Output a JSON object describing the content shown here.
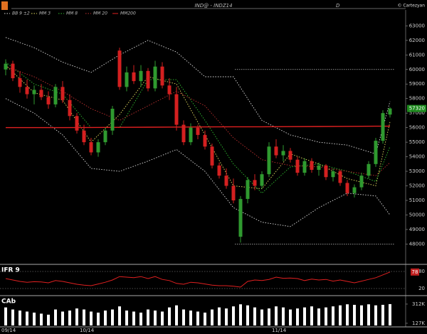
{
  "chart_data": [
    {
      "type": "candlestick",
      "title": "IND@ - INDZ14",
      "subtitle": "D",
      "credit": "© Cartezyan",
      "up_color": "#2f9a2f",
      "down_color": "#d42020",
      "ylim": [
        46700,
        63800
      ],
      "yticks": [
        48000,
        49000,
        50000,
        51000,
        52000,
        53000,
        54000,
        55000,
        56000,
        57000,
        58000,
        59000,
        60000,
        61000,
        62000,
        63000
      ],
      "last_value": 57320,
      "levels": [
        60000,
        48000
      ],
      "ohlc": [
        [
          60000,
          60700,
          59600,
          60400
        ],
        [
          60400,
          60600,
          59200,
          59400
        ],
        [
          59400,
          59900,
          58400,
          58800
        ],
        [
          58800,
          59300,
          58000,
          58300
        ],
        [
          58300,
          58900,
          57600,
          58600
        ],
        [
          58600,
          59000,
          57900,
          58100
        ],
        [
          58100,
          58500,
          57300,
          57600
        ],
        [
          57600,
          59000,
          57400,
          58800
        ],
        [
          58800,
          59200,
          57700,
          57900
        ],
        [
          57900,
          58300,
          56500,
          56800
        ],
        [
          56800,
          57000,
          55600,
          55800
        ],
        [
          55800,
          56200,
          54800,
          55000
        ],
        [
          55000,
          55300,
          54100,
          54300
        ],
        [
          54300,
          55200,
          54000,
          55000
        ],
        [
          55000,
          56000,
          54800,
          55800
        ],
        [
          55800,
          57500,
          55500,
          57300
        ],
        [
          61300,
          61500,
          58600,
          58800
        ],
        [
          58800,
          60200,
          58500,
          59800
        ],
        [
          59800,
          60300,
          59000,
          59200
        ],
        [
          59200,
          60300,
          58800,
          59900
        ],
        [
          59900,
          60100,
          58500,
          58700
        ],
        [
          58700,
          60600,
          58500,
          60200
        ],
        [
          60200,
          60500,
          58700,
          58900
        ],
        [
          58900,
          59400,
          57900,
          58300
        ],
        [
          58300,
          58800,
          55800,
          56200
        ],
        [
          56200,
          56500,
          54800,
          55000
        ],
        [
          55000,
          56300,
          54800,
          56000
        ],
        [
          56000,
          56200,
          55200,
          55500
        ],
        [
          55500,
          55800,
          54500,
          54700
        ],
        [
          54700,
          54900,
          53200,
          53400
        ],
        [
          53400,
          53600,
          52500,
          52700
        ],
        [
          52700,
          53200,
          51800,
          52000
        ],
        [
          52000,
          52500,
          50800,
          51000
        ],
        [
          48500,
          51300,
          48100,
          51100
        ],
        [
          51100,
          52600,
          50800,
          52400
        ],
        [
          52400,
          52800,
          51700,
          52000
        ],
        [
          52000,
          53000,
          51800,
          52800
        ],
        [
          52800,
          55000,
          52600,
          54700
        ],
        [
          54700,
          55200,
          53900,
          54100
        ],
        [
          54100,
          54800,
          53700,
          54400
        ],
        [
          54400,
          54600,
          53600,
          53800
        ],
        [
          53800,
          54000,
          52700,
          52900
        ],
        [
          52900,
          53900,
          52700,
          53700
        ],
        [
          53700,
          53900,
          52900,
          53100
        ],
        [
          53100,
          53600,
          52700,
          53400
        ],
        [
          53400,
          53500,
          52400,
          52600
        ],
        [
          52600,
          53200,
          52300,
          53000
        ],
        [
          53000,
          53100,
          52000,
          52200
        ],
        [
          52200,
          52400,
          51300,
          51500
        ],
        [
          51500,
          52100,
          51200,
          51900
        ],
        [
          51900,
          52900,
          51700,
          52700
        ],
        [
          52700,
          53700,
          52500,
          53500
        ],
        [
          53500,
          55300,
          53300,
          55100
        ],
        [
          55100,
          57200,
          54900,
          57000
        ],
        [
          56900,
          57400,
          56700,
          57320
        ]
      ],
      "x": [
        0,
        4,
        8,
        12,
        16,
        20,
        24,
        28,
        32,
        36,
        40,
        44,
        48,
        52,
        54
      ],
      "series": [
        {
          "name": "BB 9 ±2",
          "color": "#dddddd",
          "values": [
            62200,
            61500,
            60500,
            59800,
            61000,
            62000,
            61200,
            59500,
            59500,
            56500,
            55500,
            55000,
            54800,
            54200,
            57800
          ],
          "lower": [
            58000,
            57000,
            55500,
            53200,
            53000,
            53700,
            54500,
            53000,
            50500,
            49500,
            49200,
            50500,
            51500,
            51300,
            50000
          ]
        },
        {
          "name": "MM 3",
          "color": "#e8e060",
          "values": [
            60300,
            58400,
            57900,
            55000,
            56900,
            59500,
            59000,
            55500,
            52000,
            51800,
            54200,
            53500,
            52500,
            52000,
            56400
          ]
        },
        {
          "name": "MM 8",
          "color": "#30c030",
          "values": [
            60500,
            59000,
            58300,
            56000,
            56000,
            59300,
            59300,
            56500,
            53500,
            51500,
            53300,
            53500,
            53000,
            52300,
            54700
          ]
        },
        {
          "name": "MM 20",
          "color": "#c03030",
          "values": [
            60200,
            59500,
            58500,
            57300,
            56500,
            57500,
            58500,
            57500,
            55300,
            53800,
            53400,
            53300,
            53000,
            52700,
            53600
          ]
        },
        {
          "name": "MM200",
          "color": "#e02020",
          "values": [
            56000,
            56000,
            56000,
            56010,
            56020,
            56030,
            56040,
            56050,
            56060,
            56060,
            56070,
            56080,
            56090,
            56100,
            56100
          ]
        }
      ]
    },
    {
      "type": "line",
      "title": "IFR 9",
      "color": "#e02020",
      "ylim": [
        0,
        100
      ],
      "yticks": [
        80,
        20
      ],
      "last_value": 78,
      "values": [
        55,
        50,
        45,
        42,
        44,
        43,
        40,
        48,
        45,
        40,
        35,
        32,
        30,
        36,
        42,
        50,
        62,
        60,
        58,
        62,
        55,
        62,
        52,
        48,
        38,
        35,
        42,
        40,
        36,
        32,
        30,
        30,
        28,
        25,
        45,
        50,
        48,
        52,
        60,
        56,
        57,
        55,
        48,
        53,
        50,
        52,
        46,
        50,
        45,
        40,
        46,
        52,
        58,
        68,
        78
      ]
    },
    {
      "type": "bar",
      "title": "CAb",
      "color": "#ffffff",
      "ylim": [
        106000,
        380000
      ],
      "yticks": [
        {
          "value": 312000,
          "label": "312K"
        },
        {
          "value": 127000,
          "label": "127K"
        }
      ],
      "categories": [
        "09/14",
        null,
        null,
        null,
        null,
        null,
        null,
        null,
        null,
        null,
        null,
        "10/14",
        null,
        null,
        null,
        null,
        null,
        null,
        null,
        null,
        null,
        null,
        null,
        null,
        null,
        null,
        null,
        null,
        null,
        null,
        null,
        null,
        null,
        null,
        null,
        null,
        null,
        null,
        "11/14",
        null,
        null,
        null,
        null,
        null,
        null,
        null,
        null,
        null,
        null,
        null,
        null,
        null,
        null,
        null,
        null
      ],
      "values": [
        280000,
        260000,
        250000,
        240000,
        230000,
        220000,
        210000,
        260000,
        240000,
        250000,
        270000,
        260000,
        240000,
        230000,
        250000,
        260000,
        290000,
        250000,
        240000,
        230000,
        260000,
        250000,
        240000,
        280000,
        300000,
        260000,
        250000,
        240000,
        230000,
        260000,
        280000,
        270000,
        290000,
        310000,
        300000,
        280000,
        260000,
        270000,
        290000,
        280000,
        260000,
        270000,
        280000,
        290000,
        270000,
        280000,
        290000,
        300000,
        310000,
        305000,
        300000,
        310000,
        300000,
        305000,
        312000
      ]
    }
  ]
}
